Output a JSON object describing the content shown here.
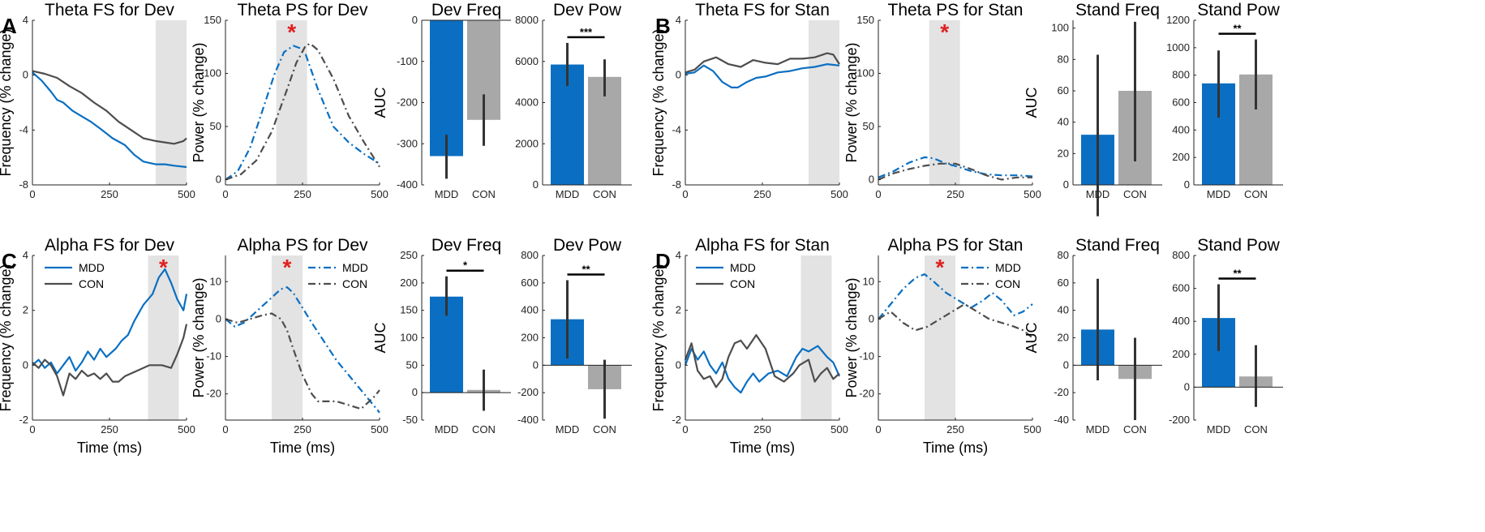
{
  "colors": {
    "mdd": "#0a6fc2",
    "con": "#4d4d4d",
    "con_bar": "#a8a8a8",
    "shade": "#e3e3e3",
    "sig": "#e02020"
  },
  "panel_labels": [
    "A",
    "B",
    "C",
    "D"
  ],
  "chart_data": [
    {
      "id": "a1",
      "type": "line",
      "panel": "A",
      "title": "Theta FS for Dev",
      "ylabel": "Frequency (% change)",
      "xlabel": "",
      "xlim": [
        0,
        500
      ],
      "ylim": [
        -8,
        4
      ],
      "xticks": [
        0,
        250,
        500
      ],
      "yticks": [
        -8,
        -4,
        0,
        4
      ],
      "shade": [
        400,
        500
      ],
      "star": false,
      "style": "solid",
      "series": [
        {
          "name": "MDD",
          "x": [
            0,
            30,
            60,
            80,
            100,
            130,
            160,
            190,
            220,
            260,
            300,
            330,
            360,
            380,
            400,
            430,
            460,
            500
          ],
          "y": [
            0.2,
            -0.4,
            -1.2,
            -1.8,
            -2.0,
            -2.6,
            -3.0,
            -3.4,
            -3.9,
            -4.6,
            -5.1,
            -5.8,
            -6.3,
            -6.4,
            -6.5,
            -6.5,
            -6.6,
            -6.7
          ]
        },
        {
          "name": "CON",
          "x": [
            0,
            40,
            80,
            120,
            160,
            200,
            240,
            280,
            320,
            360,
            380,
            400,
            430,
            460,
            490,
            500
          ],
          "y": [
            0.3,
            0.1,
            -0.2,
            -0.8,
            -1.3,
            -2.0,
            -2.6,
            -3.4,
            -4.0,
            -4.6,
            -4.7,
            -4.8,
            -4.9,
            -5.0,
            -4.8,
            -4.6
          ]
        }
      ]
    },
    {
      "id": "a2",
      "type": "line",
      "panel": "A",
      "title": "Theta PS for Dev",
      "ylabel": "Power (% change)",
      "xlabel": "",
      "xlim": [
        0,
        500
      ],
      "ylim": [
        -5,
        150
      ],
      "xticks": [
        0,
        250,
        500
      ],
      "yticks": [
        0,
        50,
        100,
        150
      ],
      "shade": [
        165,
        265
      ],
      "star": true,
      "style": "dashdot",
      "series": [
        {
          "name": "MDD",
          "x": [
            0,
            40,
            80,
            120,
            160,
            190,
            220,
            240,
            260,
            300,
            350,
            400,
            450,
            500
          ],
          "y": [
            0,
            8,
            30,
            65,
            100,
            120,
            126,
            124,
            118,
            85,
            50,
            35,
            24,
            15
          ]
        },
        {
          "name": "CON",
          "x": [
            0,
            50,
            100,
            150,
            200,
            230,
            260,
            275,
            300,
            350,
            400,
            450,
            500
          ],
          "y": [
            0,
            5,
            18,
            45,
            85,
            110,
            126,
            128,
            122,
            95,
            60,
            35,
            12
          ]
        }
      ]
    },
    {
      "id": "a3",
      "type": "bar",
      "panel": "A",
      "title": "Dev Freq",
      "ylabel": "AUC",
      "categories": [
        "MDD",
        "CON"
      ],
      "values": [
        -330,
        -242
      ],
      "err_low": [
        -385,
        -305
      ],
      "err_high": [
        -278,
        -180
      ],
      "ylim": [
        -400,
        0
      ],
      "yticks": [
        -400,
        -300,
        -200,
        -100,
        0
      ],
      "sig": ""
    },
    {
      "id": "a4",
      "type": "bar",
      "panel": "A",
      "title": "Dev Pow",
      "ylabel": "",
      "categories": [
        "MDD",
        "CON"
      ],
      "values": [
        5850,
        5250
      ],
      "err_low": [
        4800,
        4300
      ],
      "err_high": [
        6900,
        6100
      ],
      "ylim": [
        0,
        8000
      ],
      "yticks": [
        0,
        2000,
        4000,
        6000,
        8000
      ],
      "sig": "***"
    },
    {
      "id": "b1",
      "type": "line",
      "panel": "B",
      "title": "Theta FS for Stan",
      "ylabel": "Frequency (% change)",
      "xlabel": "",
      "xlim": [
        0,
        500
      ],
      "ylim": [
        -8,
        4
      ],
      "xticks": [
        0,
        250,
        500
      ],
      "yticks": [
        -8,
        -4,
        0,
        4
      ],
      "shade": [
        400,
        500
      ],
      "star": false,
      "style": "solid",
      "series": [
        {
          "name": "MDD",
          "x": [
            0,
            30,
            60,
            90,
            120,
            150,
            170,
            200,
            230,
            260,
            300,
            340,
            380,
            420,
            460,
            500
          ],
          "y": [
            0.1,
            0.2,
            0.7,
            0.3,
            -0.5,
            -0.9,
            -0.9,
            -0.5,
            -0.2,
            -0.1,
            0.2,
            0.3,
            0.5,
            0.6,
            0.8,
            0.7
          ]
        },
        {
          "name": "CON",
          "x": [
            0,
            30,
            60,
            100,
            140,
            180,
            220,
            260,
            300,
            340,
            380,
            420,
            460,
            480,
            500
          ],
          "y": [
            0.2,
            0.4,
            1.0,
            1.3,
            0.8,
            0.6,
            1.1,
            0.9,
            0.8,
            1.2,
            1.2,
            1.3,
            1.6,
            1.5,
            0.8
          ]
        }
      ]
    },
    {
      "id": "b2",
      "type": "line",
      "panel": "B",
      "title": "Theta PS for Stan",
      "ylabel": "Power (% change)",
      "xlabel": "",
      "xlim": [
        0,
        500
      ],
      "ylim": [
        -5,
        150
      ],
      "xticks": [
        0,
        250,
        500
      ],
      "yticks": [
        0,
        50,
        100,
        150
      ],
      "shade": [
        165,
        265
      ],
      "star": true,
      "style": "dashdot",
      "series": [
        {
          "name": "MDD",
          "x": [
            0,
            50,
            100,
            150,
            180,
            220,
            260,
            300,
            350,
            400,
            450,
            500
          ],
          "y": [
            2,
            8,
            16,
            21,
            20,
            15,
            12,
            8,
            5,
            4,
            4,
            3
          ]
        },
        {
          "name": "CON",
          "x": [
            0,
            50,
            100,
            150,
            200,
            250,
            300,
            350,
            400,
            450,
            500
          ],
          "y": [
            0,
            6,
            10,
            13,
            15,
            15,
            10,
            4,
            0,
            2,
            2
          ]
        }
      ]
    },
    {
      "id": "b3",
      "type": "bar",
      "panel": "B",
      "title": "Stand Freq",
      "ylabel": "AUC",
      "categories": [
        "MDD",
        "CON"
      ],
      "values": [
        32,
        60
      ],
      "err_low": [
        -20,
        15
      ],
      "err_high": [
        83,
        104
      ],
      "ylim": [
        0,
        105
      ],
      "yticks": [
        0,
        20,
        40,
        60,
        80,
        100
      ],
      "sig": ""
    },
    {
      "id": "b4",
      "type": "bar",
      "panel": "B",
      "title": "Stand Pow",
      "ylabel": "",
      "categories": [
        "MDD",
        "CON"
      ],
      "values": [
        740,
        805
      ],
      "err_low": [
        490,
        550
      ],
      "err_high": [
        980,
        1060
      ],
      "ylim": [
        0,
        1200
      ],
      "yticks": [
        0,
        200,
        400,
        600,
        800,
        1000,
        1200
      ],
      "sig": "**"
    },
    {
      "id": "c1",
      "type": "line",
      "panel": "C",
      "title": "Alpha FS for Dev",
      "ylabel": "Frequency (% change)",
      "xlabel": "Time (ms)",
      "xlim": [
        0,
        500
      ],
      "ylim": [
        -2,
        4
      ],
      "xticks": [
        0,
        250,
        500
      ],
      "yticks": [
        -2,
        0,
        2,
        4
      ],
      "shade": [
        375,
        475
      ],
      "star": true,
      "style": "solid",
      "series": [
        {
          "name": "MDD",
          "x": [
            0,
            20,
            40,
            60,
            80,
            100,
            120,
            140,
            160,
            180,
            200,
            220,
            240,
            270,
            290,
            310,
            330,
            360,
            390,
            410,
            430,
            450,
            470,
            490,
            500
          ],
          "y": [
            0,
            0.2,
            -0.1,
            0.1,
            -0.3,
            0,
            0.3,
            -0.2,
            0.1,
            0.5,
            0.2,
            0.6,
            0.3,
            0.6,
            0.9,
            1.1,
            1.6,
            2.2,
            2.6,
            3.2,
            3.5,
            3.0,
            2.4,
            2.0,
            2.6
          ]
        },
        {
          "name": "CON",
          "x": [
            0,
            20,
            40,
            60,
            80,
            100,
            120,
            140,
            160,
            180,
            200,
            220,
            240,
            260,
            280,
            300,
            340,
            380,
            420,
            450,
            470,
            490,
            500
          ],
          "y": [
            0.1,
            -0.1,
            0.2,
            0,
            -0.4,
            -1.1,
            -0.3,
            -0.5,
            -0.2,
            -0.4,
            -0.3,
            -0.5,
            -0.3,
            -0.6,
            -0.6,
            -0.4,
            -0.2,
            0,
            0,
            -0.1,
            0.4,
            1.0,
            1.5
          ]
        }
      ]
    },
    {
      "id": "c2",
      "type": "line",
      "panel": "C",
      "title": "Alpha PS for Dev",
      "ylabel": "Power (% change)",
      "xlabel": "Time (ms)",
      "xlim": [
        0,
        500
      ],
      "ylim": [
        -27,
        17
      ],
      "xticks": [
        0,
        250,
        500
      ],
      "yticks": [
        -20,
        -10,
        0,
        10
      ],
      "shade": [
        150,
        250
      ],
      "star": true,
      "style": "dashdot",
      "series": [
        {
          "name": "MDD",
          "x": [
            0,
            30,
            60,
            100,
            140,
            180,
            200,
            220,
            250,
            280,
            320,
            360,
            400,
            440,
            480,
            500
          ],
          "y": [
            0,
            -2,
            -1,
            2,
            5,
            8,
            8.5,
            7,
            3,
            -1,
            -6,
            -11,
            -15,
            -19,
            -23,
            -25
          ]
        },
        {
          "name": "CON",
          "x": [
            0,
            40,
            80,
            120,
            150,
            180,
            200,
            220,
            250,
            280,
            300,
            330,
            360,
            400,
            440,
            480,
            500
          ],
          "y": [
            0,
            -1,
            0,
            1,
            1.5,
            0,
            -3,
            -8,
            -15,
            -20,
            -22,
            -22,
            -22,
            -23,
            -24,
            -21,
            -19
          ]
        }
      ]
    },
    {
      "id": "c3",
      "type": "bar",
      "panel": "C",
      "title": "Dev Freq",
      "ylabel": "AUC",
      "categories": [
        "MDD",
        "CON"
      ],
      "values": [
        175,
        5
      ],
      "err_low": [
        140,
        -33
      ],
      "err_high": [
        212,
        42
      ],
      "ylim": [
        -50,
        250
      ],
      "yticks": [
        -50,
        0,
        50,
        100,
        150,
        200,
        250
      ],
      "sig": "*"
    },
    {
      "id": "c4",
      "type": "bar",
      "panel": "C",
      "title": "Dev Pow",
      "ylabel": "",
      "categories": [
        "MDD",
        "CON"
      ],
      "values": [
        335,
        -175
      ],
      "err_low": [
        50,
        -390
      ],
      "err_high": [
        620,
        40
      ],
      "ylim": [
        -400,
        800
      ],
      "yticks": [
        -400,
        -200,
        0,
        200,
        400,
        600,
        800
      ],
      "sig": "**"
    },
    {
      "id": "d1",
      "type": "line",
      "panel": "D",
      "title": "Alpha FS for Stan",
      "ylabel": "Frequency (% change)",
      "xlabel": "Time (ms)",
      "xlim": [
        0,
        500
      ],
      "ylim": [
        -2,
        4
      ],
      "xticks": [
        0,
        250,
        500
      ],
      "yticks": [
        -2,
        0,
        2,
        4
      ],
      "shade": [
        375,
        475
      ],
      "star": false,
      "style": "solid",
      "series": [
        {
          "name": "MDD",
          "x": [
            0,
            20,
            40,
            60,
            80,
            100,
            120,
            140,
            160,
            180,
            200,
            220,
            240,
            270,
            300,
            330,
            360,
            380,
            400,
            430,
            460,
            480,
            500
          ],
          "y": [
            0,
            0.6,
            0.2,
            0.5,
            0,
            -0.3,
            0.1,
            -0.5,
            -0.8,
            -1.0,
            -0.6,
            -0.3,
            -0.6,
            -0.3,
            -0.2,
            -0.4,
            0.3,
            0.6,
            0.5,
            0.7,
            0.3,
            0.1,
            -0.4
          ]
        },
        {
          "name": "CON",
          "x": [
            0,
            20,
            40,
            60,
            80,
            100,
            120,
            140,
            160,
            180,
            200,
            230,
            260,
            290,
            320,
            350,
            370,
            400,
            420,
            440,
            460,
            480,
            500
          ],
          "y": [
            0.2,
            0.8,
            -0.2,
            -0.5,
            -0.4,
            -0.8,
            -0.5,
            0.3,
            0.8,
            0.9,
            0.6,
            1.1,
            0.6,
            -0.4,
            -0.6,
            -0.3,
            0,
            0.2,
            -0.6,
            -0.3,
            -0.1,
            -0.5,
            -0.3
          ]
        }
      ]
    },
    {
      "id": "d2",
      "type": "line",
      "panel": "D",
      "title": "Alpha PS for Stan",
      "ylabel": "Power (% change)",
      "xlabel": "Time (ms)",
      "xlim": [
        0,
        500
      ],
      "ylim": [
        -27,
        17
      ],
      "xticks": [
        0,
        250,
        500
      ],
      "yticks": [
        -20,
        -10,
        0,
        10
      ],
      "shade": [
        150,
        250
      ],
      "star": true,
      "style": "dashdot",
      "series": [
        {
          "name": "MDD",
          "x": [
            0,
            40,
            80,
            120,
            150,
            180,
            220,
            260,
            300,
            340,
            370,
            400,
            440,
            470,
            500
          ],
          "y": [
            0,
            4,
            8,
            11,
            12,
            10,
            7,
            5,
            3,
            5,
            7,
            5,
            1,
            2,
            4
          ]
        },
        {
          "name": "CON",
          "x": [
            0,
            40,
            80,
            120,
            160,
            200,
            240,
            280,
            320,
            360,
            400,
            440,
            470,
            500
          ],
          "y": [
            0,
            2,
            -1,
            -3,
            -2,
            0,
            2,
            4,
            2,
            0,
            -1,
            -2,
            -3,
            -5
          ]
        }
      ]
    },
    {
      "id": "d3",
      "type": "bar",
      "panel": "D",
      "title": "Stand Freq",
      "ylabel": "AUC",
      "categories": [
        "MDD",
        "CON"
      ],
      "values": [
        26,
        -10
      ],
      "err_low": [
        -11,
        -40
      ],
      "err_high": [
        63,
        20
      ],
      "ylim": [
        -40,
        80
      ],
      "yticks": [
        -40,
        -20,
        0,
        20,
        40,
        60,
        80
      ],
      "sig": ""
    },
    {
      "id": "d4",
      "type": "bar",
      "panel": "D",
      "title": "Stand Pow",
      "ylabel": "",
      "categories": [
        "MDD",
        "CON"
      ],
      "values": [
        420,
        65
      ],
      "err_low": [
        220,
        -120
      ],
      "err_high": [
        625,
        255
      ],
      "ylim": [
        -200,
        800
      ],
      "yticks": [
        -200,
        0,
        200,
        400,
        600,
        800
      ],
      "sig": "**"
    }
  ]
}
